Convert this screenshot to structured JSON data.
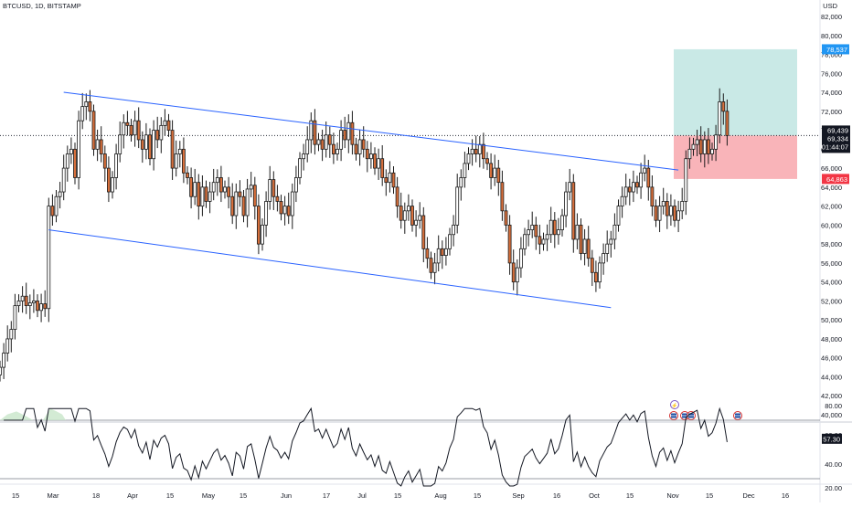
{
  "header": {
    "symbol": "BTCUSD, 1D, BITSTAMP",
    "currency": "USD"
  },
  "chart_data": [
    {
      "type": "candlestick",
      "symbol": "BTCUSD",
      "timeframe": "1D",
      "exchange": "BITSTAMP",
      "ylim": [
        40000,
        82000
      ],
      "ticks": [
        40000,
        42000,
        44000,
        46000,
        48000,
        50000,
        52000,
        54000,
        56000,
        58000,
        60000,
        62000,
        64000,
        66000,
        68000,
        70000,
        72000,
        74000,
        76000,
        78000,
        80000,
        82000
      ],
      "tick_labels": [
        "40,000",
        "42,000",
        "44,000",
        "46,000",
        "48,000",
        "50,000",
        "52,000",
        "54,000",
        "56,000",
        "58,000",
        "60,000",
        "62,000",
        "64,000",
        "66,000",
        "68,000",
        "70,000",
        "72,000",
        "74,000",
        "76,000",
        "78,000",
        "80,000",
        "82,000"
      ],
      "x_labels": [
        "15",
        "Mar",
        "18",
        "Apr",
        "15",
        "May",
        "15",
        "Jun",
        "17",
        "Jul",
        "15",
        "Aug",
        "15",
        "Sep",
        "16",
        "Oct",
        "15",
        "Nov",
        "15",
        "Dec",
        "16"
      ],
      "closes": [
        45000,
        46500,
        48000,
        49000,
        51500,
        52000,
        52500,
        51500,
        51800,
        52000,
        51000,
        51700,
        51200,
        62000,
        61000,
        63000,
        63500,
        66000,
        67500,
        68000,
        65000,
        71000,
        72500,
        73000,
        72000,
        68000,
        69000,
        67500,
        66000,
        63500,
        65000,
        67500,
        69500,
        70800,
        70500,
        69500,
        71000,
        69000,
        68000,
        69500,
        67000,
        70000,
        69000,
        70500,
        71000,
        70000,
        66000,
        67500,
        68000,
        65500,
        65000,
        63000,
        64500,
        62000,
        64000,
        62500,
        63500,
        64500,
        65000,
        63500,
        64000,
        63000,
        61000,
        63500,
        63000,
        61000,
        63800,
        64200,
        62000,
        58000,
        60000,
        62500,
        64800,
        63000,
        62500,
        61200,
        62000,
        61000,
        63500,
        65000,
        67000,
        67500,
        69000,
        71000,
        68500,
        69000,
        68000,
        69500,
        68500,
        67500,
        68000,
        70000,
        69000,
        70800,
        68500,
        67500,
        69000,
        68000,
        67000,
        67500,
        66000,
        67000,
        65000,
        64500,
        65500,
        64000,
        62000,
        60500,
        61500,
        62000,
        60000,
        60500,
        61000,
        57500,
        56500,
        55000,
        56000,
        57500,
        56800,
        57500,
        59000,
        60000,
        64000,
        65000,
        66500,
        67500,
        68000,
        67500,
        68500,
        67000,
        66500,
        65000,
        66000,
        64500,
        61500,
        60000,
        56000,
        54000,
        55500,
        57500,
        59000,
        59500,
        60000,
        58800,
        58000,
        58500,
        59000,
        60500,
        59000,
        59500,
        61000,
        63500,
        64500,
        58500,
        60000,
        57000,
        58500,
        56500,
        55000,
        54000,
        56000,
        57000,
        58000,
        58500,
        60000,
        62000,
        63000,
        64000,
        63500,
        64500,
        64000,
        65500,
        66000,
        64000,
        62000,
        60500,
        62000,
        62500,
        61000,
        62000,
        60500,
        61500,
        62500,
        67000,
        68000,
        68500,
        69000,
        67500,
        69000,
        67500,
        68000,
        69500,
        73000,
        72000,
        69439
      ],
      "series": [
        {
          "name": "Descending channel (upper)",
          "points": [
            [
              17,
              74000
            ],
            [
              181,
              65800
            ]
          ]
        },
        {
          "name": "Descending channel (lower)",
          "points": [
            [
              13,
              59500
            ],
            [
              163,
              51300
            ]
          ]
        }
      ],
      "position": {
        "target": 78537,
        "entry": 69439,
        "stop": 64863
      },
      "last_price": 69439,
      "price_labels": {
        "target": "78,537",
        "last": "69,439",
        "second": "69,334",
        "countdown": "01:44:07",
        "stop": "64,863"
      }
    },
    {
      "type": "line",
      "name": "RSI",
      "ylim": [
        20,
        100
      ],
      "ticks": [
        40,
        60,
        80
      ],
      "tick_labels": [
        "40.00",
        "60.00",
        "80.00"
      ],
      "levels": [
        30,
        70
      ],
      "last_value": 57.3,
      "last_label": "57.30",
      "offscreen_label": "20.00"
    }
  ]
}
